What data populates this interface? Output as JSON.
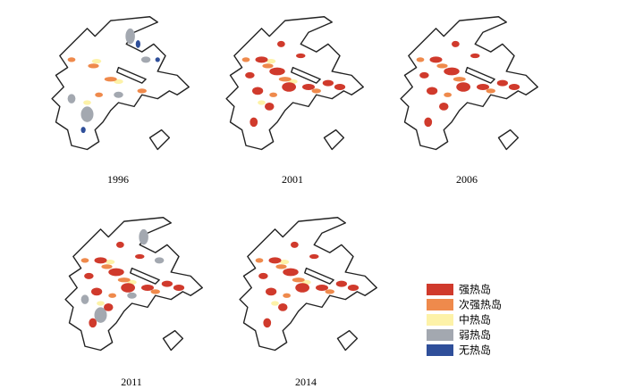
{
  "panels": [
    {
      "year": "1996"
    },
    {
      "year": "2001"
    },
    {
      "year": "2006"
    },
    {
      "year": "2011"
    },
    {
      "year": "2014"
    }
  ],
  "legend": [
    {
      "label": "强热岛",
      "color": "#d03a2c"
    },
    {
      "label": "次强热岛",
      "color": "#ef8a4c"
    },
    {
      "label": "中热岛",
      "color": "#fdf2a8"
    },
    {
      "label": "弱热岛",
      "color": "#a3a8b0"
    },
    {
      "label": "无热岛",
      "color": "#2f4f9a"
    }
  ]
}
